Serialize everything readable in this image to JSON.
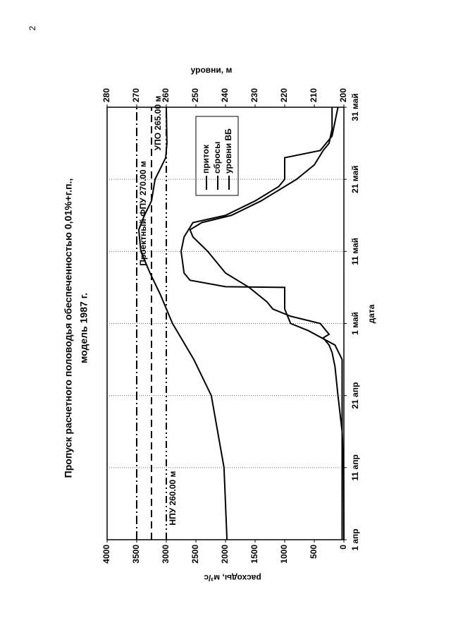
{
  "page_number": "2",
  "chart_data": {
    "type": "line",
    "title": "Пропуск расчетного половодья обеспеченностью 0,01%+г.п.,",
    "subtitle": "модель 1987 г.",
    "x_label": "дата",
    "y_label": "расходы, м³/с",
    "y2_label": "уровни, м",
    "xlim": [
      0,
      60
    ],
    "xticks": [
      {
        "value": 0,
        "label": "1 апр"
      },
      {
        "value": 10,
        "label": "11 апр"
      },
      {
        "value": 20,
        "label": "21 апр"
      },
      {
        "value": 30,
        "label": "1 май"
      },
      {
        "value": 40,
        "label": "11 май"
      },
      {
        "value": 50,
        "label": "21 май"
      },
      {
        "value": 60,
        "label": "31 май"
      }
    ],
    "ylim": [
      0,
      4000
    ],
    "yticks": [
      0,
      500,
      1000,
      1500,
      2000,
      2500,
      3000,
      3500,
      4000
    ],
    "y2lim": [
      200,
      280
    ],
    "y2ticks": [
      200,
      210,
      220,
      230,
      240,
      250,
      260,
      270,
      280
    ],
    "grid": true,
    "series": [
      {
        "name": "приток",
        "color": "#000000",
        "x": [
          0,
          10,
          15,
          20,
          24,
          26,
          27,
          28,
          28.5,
          29,
          30,
          31,
          32,
          33,
          35,
          37,
          40,
          42,
          43,
          44,
          45,
          47,
          49,
          50,
          52,
          54,
          55,
          57,
          60
        ],
        "values": [
          0,
          5,
          30,
          100,
          150,
          200,
          250,
          350,
          250,
          300,
          400,
          900,
          1200,
          1300,
          1600,
          2000,
          2300,
          2550,
          2600,
          2400,
          1900,
          1400,
          1000,
          800,
          500,
          350,
          250,
          200,
          200
        ]
      },
      {
        "name": "сбросы",
        "color": "#000000",
        "x": [
          0,
          25,
          27,
          29,
          30,
          32,
          35,
          35.1,
          36,
          37,
          40,
          42,
          44,
          45,
          47,
          49,
          50,
          53,
          54,
          56,
          60
        ],
        "values": [
          30,
          30,
          150,
          600,
          900,
          1000,
          1000,
          2000,
          2600,
          2700,
          2750,
          2700,
          2550,
          2000,
          1500,
          1100,
          1000,
          1000,
          400,
          200,
          100
        ]
      },
      {
        "name": "уровни ВБ",
        "color": "#000000",
        "axis": "y2",
        "x": [
          0,
          10,
          20,
          25,
          30,
          34,
          37,
          40,
          43,
          45,
          47,
          50,
          53,
          55,
          60
        ],
        "values": [
          239.5,
          240.5,
          244.8,
          250.7,
          257.9,
          262,
          265.5,
          268.6,
          269.3,
          267.4,
          265,
          263.8,
          260.2,
          259.8,
          260
        ]
      }
    ],
    "reference_lines": [
      {
        "label": "Проектный ФПУ 270.00 м",
        "value": 270,
        "axis": "y2",
        "at_x": 38
      },
      {
        "label": "УПО 265.00 м",
        "value": 265,
        "axis": "y2",
        "at_x": 54
      },
      {
        "label": "НПУ 260.00 м",
        "value": 260,
        "axis": "y2",
        "at_x": 2
      }
    ]
  }
}
